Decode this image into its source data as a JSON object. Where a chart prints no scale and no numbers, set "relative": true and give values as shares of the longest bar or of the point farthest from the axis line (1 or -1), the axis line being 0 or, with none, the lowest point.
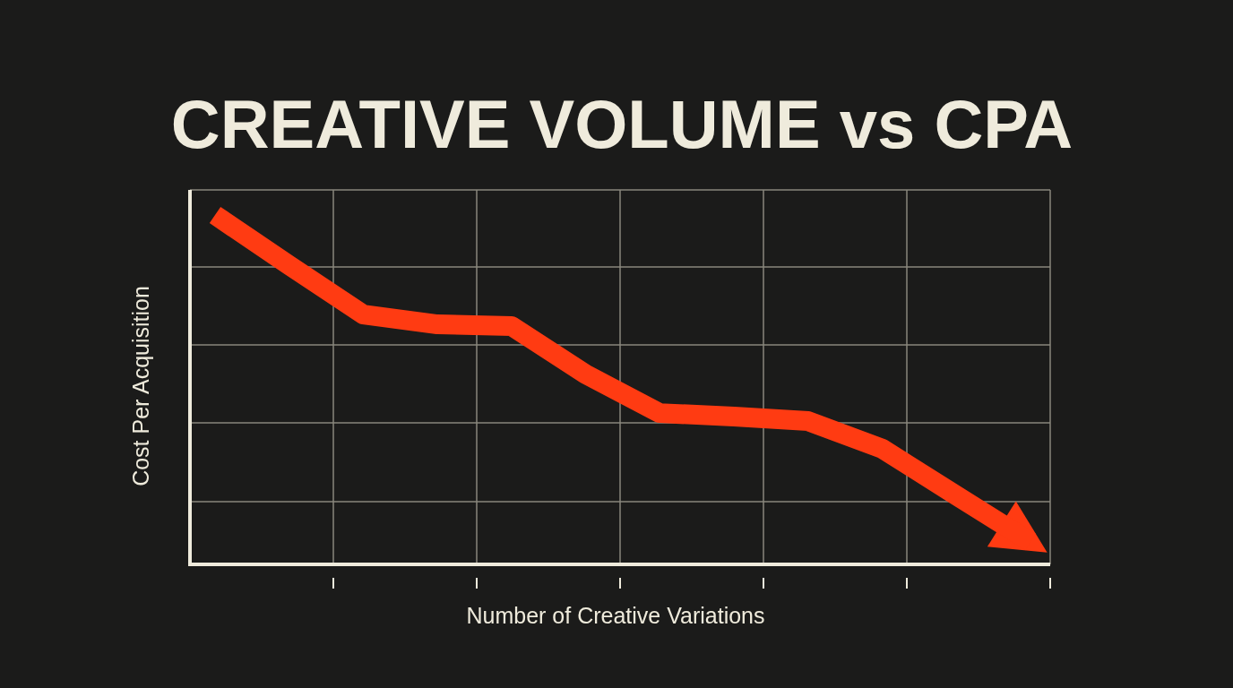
{
  "chart_data": {
    "type": "line",
    "title": "CREATIVE VOLUME vs CPA",
    "xlabel": "Number of Creative Variations",
    "ylabel": "Cost Per Acquisition",
    "relative": true,
    "grid": true,
    "marker": "none",
    "categories": [
      null,
      null,
      null,
      null,
      null,
      null,
      null,
      null,
      null,
      null,
      null,
      null
    ],
    "series": [
      {
        "color": "#ff3b12",
        "values": [
          1,
          0.856,
          0.715,
          0.687,
          0.682,
          0.544,
          0.433,
          0.423,
          0.41,
          0.331,
          0.197,
          0.064
        ]
      }
    ]
  }
}
